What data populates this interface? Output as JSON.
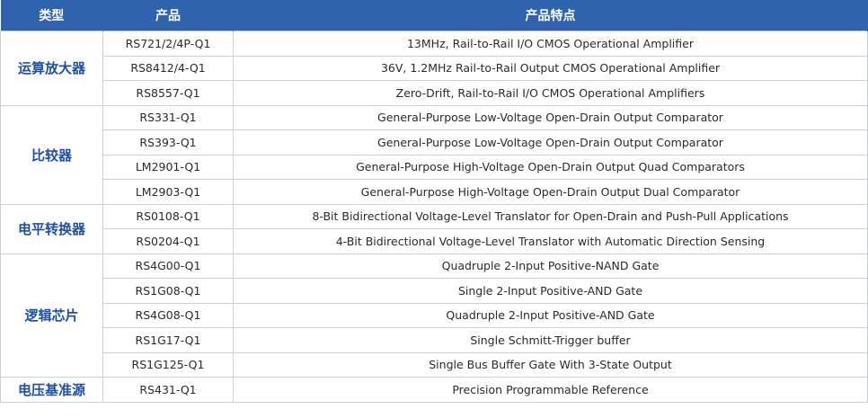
{
  "headers": {
    "category": "类型",
    "product": "产品",
    "feature": "产品特点"
  },
  "groups": [
    {
      "category": "运算放大器",
      "rows": [
        {
          "product": "RS721/2/4P-Q1",
          "feature": "13MHz, Rail-to-Rail I/O CMOS Operational Amplifier"
        },
        {
          "product": "RS8412/4-Q1",
          "feature": "36V, 1.2MHz Rail-to-Rail Output CMOS Operational Amplifier"
        },
        {
          "product": "RS8557-Q1",
          "feature": "Zero-Drift, Rail-to-Rail I/O CMOS Operational Amplifiers"
        }
      ]
    },
    {
      "category": "比较器",
      "rows": [
        {
          "product": "RS331-Q1",
          "feature": "General-Purpose Low-Voltage Open-Drain  Output Comparator"
        },
        {
          "product": "RS393-Q1",
          "feature": "General-Purpose Low-Voltage Open-Drain  Output Comparator"
        },
        {
          "product": "LM2901-Q1",
          "feature": "General-Purpose High-Voltage Open-Drain Output Quad Comparators"
        },
        {
          "product": "LM2903-Q1",
          "feature": "General-Purpose High-Voltage Open-Drain Output Dual Comparator"
        }
      ]
    },
    {
      "category": "电平转换器",
      "rows": [
        {
          "product": "RS0108-Q1",
          "feature": "8-Bit Bidirectional Voltage-Level Translator for Open-Drain and Push-Pull Applications"
        },
        {
          "product": "RS0204-Q1",
          "feature": "4-Bit Bidirectional Voltage-Level Translator with Automatic Direction Sensing"
        }
      ]
    },
    {
      "category": "逻辑芯片",
      "rows": [
        {
          "product": "RS4G00-Q1",
          "feature": "Quadruple 2-Input Positive-NAND Gate"
        },
        {
          "product": "RS1G08-Q1",
          "feature": "Single 2-Input Positive-AND Gate"
        },
        {
          "product": "RS4G08-Q1",
          "feature": "Quadruple 2-Input Positive-AND Gate"
        },
        {
          "product": "RS1G17-Q1",
          "feature": "Single Schmitt-Trigger buffer"
        },
        {
          "product": "RS1G125-Q1",
          "feature": "Single Bus Buffer Gate With 3-State Output"
        }
      ]
    },
    {
      "category": "电压基准源",
      "rows": [
        {
          "product": "RS431-Q1",
          "feature": "Precision Programmable Reference"
        }
      ]
    }
  ]
}
